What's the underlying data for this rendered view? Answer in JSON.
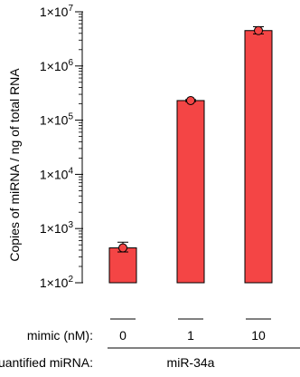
{
  "chart_data": {
    "type": "bar",
    "ylabel": "Copies of miRNA / ng of total RNA",
    "yscale": "log",
    "ylim": [
      100,
      10000000
    ],
    "y_ticks": [
      {
        "value": 100,
        "mantissa": "1×10",
        "exp": "2"
      },
      {
        "value": 1000,
        "mantissa": "1×10",
        "exp": "3"
      },
      {
        "value": 10000,
        "mantissa": "1×10",
        "exp": "4"
      },
      {
        "value": 100000,
        "mantissa": "1×10",
        "exp": "5"
      },
      {
        "value": 1000000,
        "mantissa": "1×10",
        "exp": "6"
      },
      {
        "value": 10000000,
        "mantissa": "1×10",
        "exp": "7"
      }
    ],
    "categories": [
      "0",
      "1",
      "10"
    ],
    "values": [
      440,
      230000,
      4500000
    ],
    "error_high": [
      560,
      240000,
      5300000
    ],
    "error_low": [
      370,
      220000,
      3900000
    ],
    "bar_color": "#f44545",
    "point_color": "#f44545",
    "grid": false,
    "row_labels": {
      "mimic": "mimic (nM):",
      "quantified": "Quantified miRNA:"
    },
    "group_label": "miR-34a"
  }
}
